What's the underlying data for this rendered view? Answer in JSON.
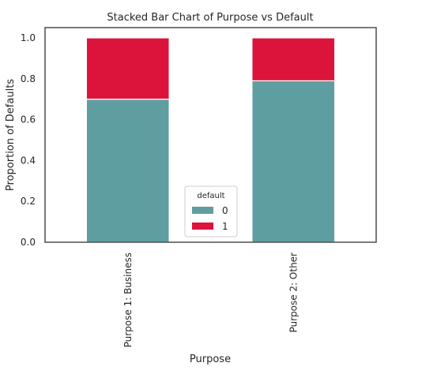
{
  "chart_data": {
    "type": "bar",
    "stacked": true,
    "title": "Stacked Bar Chart of Purpose vs Default",
    "xlabel": "Purpose",
    "ylabel": "Proportion of Defaults",
    "categories": [
      "Purpose 1: Business",
      "Purpose 2: Other"
    ],
    "series": [
      {
        "name": "0",
        "values": [
          0.7,
          0.79
        ],
        "color": "#5f9ea0"
      },
      {
        "name": "1",
        "values": [
          0.3,
          0.21
        ],
        "color": "#dc143c"
      }
    ],
    "ylim": [
      0,
      1.0
    ],
    "yticks": [
      "0.0",
      "0.2",
      "0.4",
      "0.6",
      "0.8",
      "1.0"
    ],
    "legend": {
      "title": "default",
      "placement": "lower-center"
    },
    "grid": false,
    "frame_color": "#4d4d4d"
  }
}
